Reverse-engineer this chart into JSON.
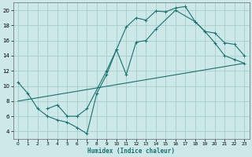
{
  "xlabel": "Humidex (Indice chaleur)",
  "background_color": "#cce8e8",
  "grid_color": "#aacccc",
  "line_color": "#1a7070",
  "xlim": [
    -0.5,
    23.5
  ],
  "ylim": [
    3,
    21
  ],
  "xticks": [
    0,
    1,
    2,
    3,
    4,
    5,
    6,
    7,
    8,
    9,
    10,
    11,
    12,
    13,
    14,
    15,
    16,
    17,
    18,
    19,
    20,
    21,
    22,
    23
  ],
  "yticks": [
    4,
    6,
    8,
    10,
    12,
    14,
    16,
    18,
    20
  ],
  "line1_x": [
    0,
    1,
    2,
    3,
    4,
    5,
    6,
    7,
    8,
    9,
    10,
    11,
    12,
    13,
    14,
    15,
    16,
    17,
    18,
    19,
    20,
    21,
    22,
    23
  ],
  "line1_y": [
    10.5,
    9,
    7,
    6,
    5.5,
    5.2,
    4.5,
    3.7,
    9,
    11.5,
    14.8,
    17.8,
    19.0,
    18.7,
    19.9,
    19.8,
    20.3,
    20.5,
    18.5,
    17.2,
    15.7,
    14.0,
    13.5,
    13.0
  ],
  "line2_x": [
    3,
    4,
    5,
    6,
    7,
    9,
    10,
    11,
    12,
    13,
    14,
    16,
    18,
    19,
    20,
    21,
    22,
    23
  ],
  "line2_y": [
    7.0,
    7.5,
    6.0,
    6.0,
    7.0,
    12.0,
    14.8,
    11.5,
    15.8,
    16.0,
    17.5,
    20.0,
    18.5,
    17.2,
    17.0,
    15.7,
    15.5,
    14.0
  ],
  "line3_x": [
    0,
    23
  ],
  "line3_y": [
    8.0,
    13.0
  ]
}
